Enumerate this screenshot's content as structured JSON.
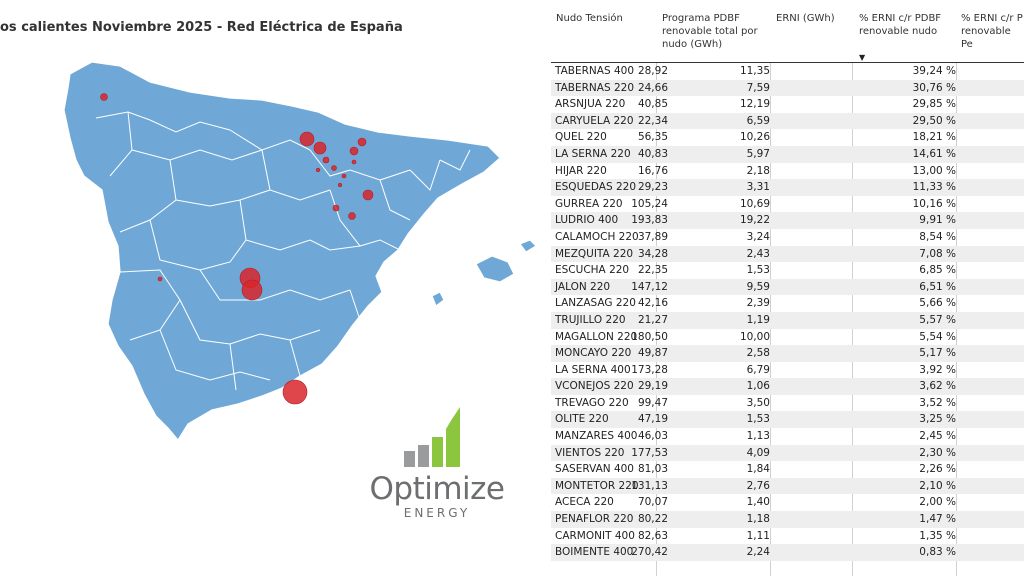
{
  "map": {
    "title": "os calientes Noviembre 2025 - Red Eléctrica de España",
    "land_color": "#6fa8d6",
    "border_color": "#ffffff",
    "marker_color": "#d9262c"
  },
  "logo": {
    "word": "Optimize",
    "sub": "ENERGY",
    "bar_colors": [
      "#9a9b9d",
      "#9a9b9d",
      "#8cc63f",
      "#8cc63f"
    ]
  },
  "table": {
    "headers": {
      "nudo": "Nudo Tensión",
      "programa": [
        "Programa PDBF",
        "renovable total por",
        "nudo (GWh)"
      ],
      "erni": "ERNI (GWh)",
      "pct": [
        "% ERNI c/r PDBF",
        "renovable nudo"
      ],
      "pct2": [
        "% ERNI c/r P",
        "renovable Pe"
      ]
    },
    "rows": [
      {
        "nudo": "TABERNAS 400",
        "programa": "28,92",
        "erni": "11,35",
        "pct": "39,24 %"
      },
      {
        "nudo": "TABERNAS 220",
        "programa": "24,66",
        "erni": "7,59",
        "pct": "30,76 %"
      },
      {
        "nudo": "ARSNJUA 220",
        "programa": "40,85",
        "erni": "12,19",
        "pct": "29,85 %"
      },
      {
        "nudo": "CARYUELA 220",
        "programa": "22,34",
        "erni": "6,59",
        "pct": "29,50 %"
      },
      {
        "nudo": "QUEL 220",
        "programa": "56,35",
        "erni": "10,26",
        "pct": "18,21 %"
      },
      {
        "nudo": "LA SERNA 220",
        "programa": "40,83",
        "erni": "5,97",
        "pct": "14,61 %"
      },
      {
        "nudo": "HIJAR 220",
        "programa": "16,76",
        "erni": "2,18",
        "pct": "13,00 %"
      },
      {
        "nudo": "ESQUEDAS 220",
        "programa": "29,23",
        "erni": "3,31",
        "pct": "11,33 %"
      },
      {
        "nudo": "GURREA 220",
        "programa": "105,24",
        "erni": "10,69",
        "pct": "10,16 %"
      },
      {
        "nudo": "LUDRIO 400",
        "programa": "193,83",
        "erni": "19,22",
        "pct": "9,91 %"
      },
      {
        "nudo": "CALAMOCH 220",
        "programa": "37,89",
        "erni": "3,24",
        "pct": "8,54 %"
      },
      {
        "nudo": "MEZQUITA 220",
        "programa": "34,28",
        "erni": "2,43",
        "pct": "7,08 %"
      },
      {
        "nudo": "ESCUCHA 220",
        "programa": "22,35",
        "erni": "1,53",
        "pct": "6,85 %"
      },
      {
        "nudo": "JALON 220",
        "programa": "147,12",
        "erni": "9,59",
        "pct": "6,51 %"
      },
      {
        "nudo": "LANZASAG 220",
        "programa": "42,16",
        "erni": "2,39",
        "pct": "5,66 %"
      },
      {
        "nudo": "TRUJILLO 220",
        "programa": "21,27",
        "erni": "1,19",
        "pct": "5,57 %"
      },
      {
        "nudo": "MAGALLON 220",
        "programa": "180,50",
        "erni": "10,00",
        "pct": "5,54 %"
      },
      {
        "nudo": "MONCAYO 220",
        "programa": "49,87",
        "erni": "2,58",
        "pct": "5,17 %"
      },
      {
        "nudo": "LA SERNA 400",
        "programa": "173,28",
        "erni": "6,79",
        "pct": "3,92 %"
      },
      {
        "nudo": "VCONEJOS 220",
        "programa": "29,19",
        "erni": "1,06",
        "pct": "3,62 %"
      },
      {
        "nudo": "TREVAGO 220",
        "programa": "99,47",
        "erni": "3,50",
        "pct": "3,52 %"
      },
      {
        "nudo": "OLITE 220",
        "programa": "47,19",
        "erni": "1,53",
        "pct": "3,25 %"
      },
      {
        "nudo": "MANZARES 400",
        "programa": "46,03",
        "erni": "1,13",
        "pct": "2,45 %"
      },
      {
        "nudo": "VIENTOS 220",
        "programa": "177,53",
        "erni": "4,09",
        "pct": "2,30 %"
      },
      {
        "nudo": "SASERVAN 400",
        "programa": "81,03",
        "erni": "1,84",
        "pct": "2,26 %"
      },
      {
        "nudo": "MONTETOR 220",
        "programa": "131,13",
        "erni": "2,76",
        "pct": "2,10 %"
      },
      {
        "nudo": "ACECA 220",
        "programa": "70,07",
        "erni": "1,40",
        "pct": "2,00 %"
      },
      {
        "nudo": "PENAFLOR 220",
        "programa": "80,22",
        "erni": "1,18",
        "pct": "1,47 %"
      },
      {
        "nudo": "CARMONIT 400",
        "programa": "82,63",
        "erni": "1,11",
        "pct": "1,35 %"
      },
      {
        "nudo": "BOIMENTE 400",
        "programa": "270,42",
        "erni": "2,24",
        "pct": "0,83 %"
      }
    ]
  }
}
